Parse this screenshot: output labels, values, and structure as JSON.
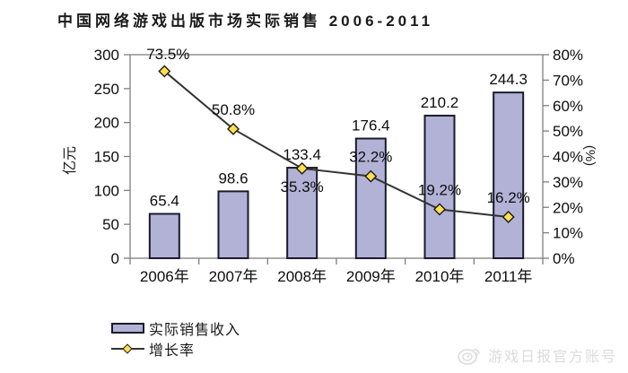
{
  "title": "中国网络游戏出版市场实际销售 2006-2011",
  "chart_data": {
    "type": "bar+line",
    "categories": [
      "2006年",
      "2007年",
      "2008年",
      "2009年",
      "2010年",
      "2011年"
    ],
    "series": [
      {
        "name": "实际销售收入",
        "type": "bar",
        "axis": "left",
        "unit": "亿元",
        "values": [
          65.4,
          98.6,
          133.4,
          176.4,
          210.2,
          244.3
        ],
        "labels": [
          "65.4",
          "98.6",
          "133.4",
          "176.4",
          "210.2",
          "244.3"
        ]
      },
      {
        "name": "增长率",
        "type": "line",
        "axis": "right",
        "unit": "%",
        "values": [
          73.5,
          50.8,
          35.3,
          32.2,
          19.2,
          16.2
        ],
        "labels": [
          "73.5%",
          "50.8%",
          "35.3%",
          "32.2%",
          "19.2%",
          "16.2%"
        ],
        "label_positions": [
          "top",
          "above",
          "below",
          "above",
          "above",
          "above"
        ]
      }
    ],
    "left_axis": {
      "title": "亿元",
      "min": 0,
      "max": 300,
      "step": 50,
      "tick_labels": [
        "0",
        "50",
        "100",
        "150",
        "200",
        "250",
        "300"
      ]
    },
    "right_axis": {
      "title": "(%)",
      "min": 0,
      "max": 80,
      "step": 10,
      "tick_labels": [
        "0%",
        "10%",
        "20%",
        "30%",
        "40%",
        "50%",
        "60%",
        "70%",
        "80%"
      ]
    },
    "legend": {
      "position": "bottom-left",
      "items": [
        {
          "label": "实际销售收入",
          "swatch": "bar"
        },
        {
          "label": "增长率",
          "swatch": "line-diamond"
        }
      ]
    },
    "grid": "off"
  },
  "colors": {
    "bar_fill": "#b2b2d6",
    "bar_border": "#1a1a2e",
    "line": "#333333",
    "marker_fill": "#ffdf4d",
    "marker_border": "#1a1a1a",
    "axis": "#808080",
    "text": "#0d0d0d",
    "watermark": "#dcdcdc"
  },
  "watermark": {
    "text": "游戏日报官方账号",
    "icon": "weibo-logo"
  }
}
